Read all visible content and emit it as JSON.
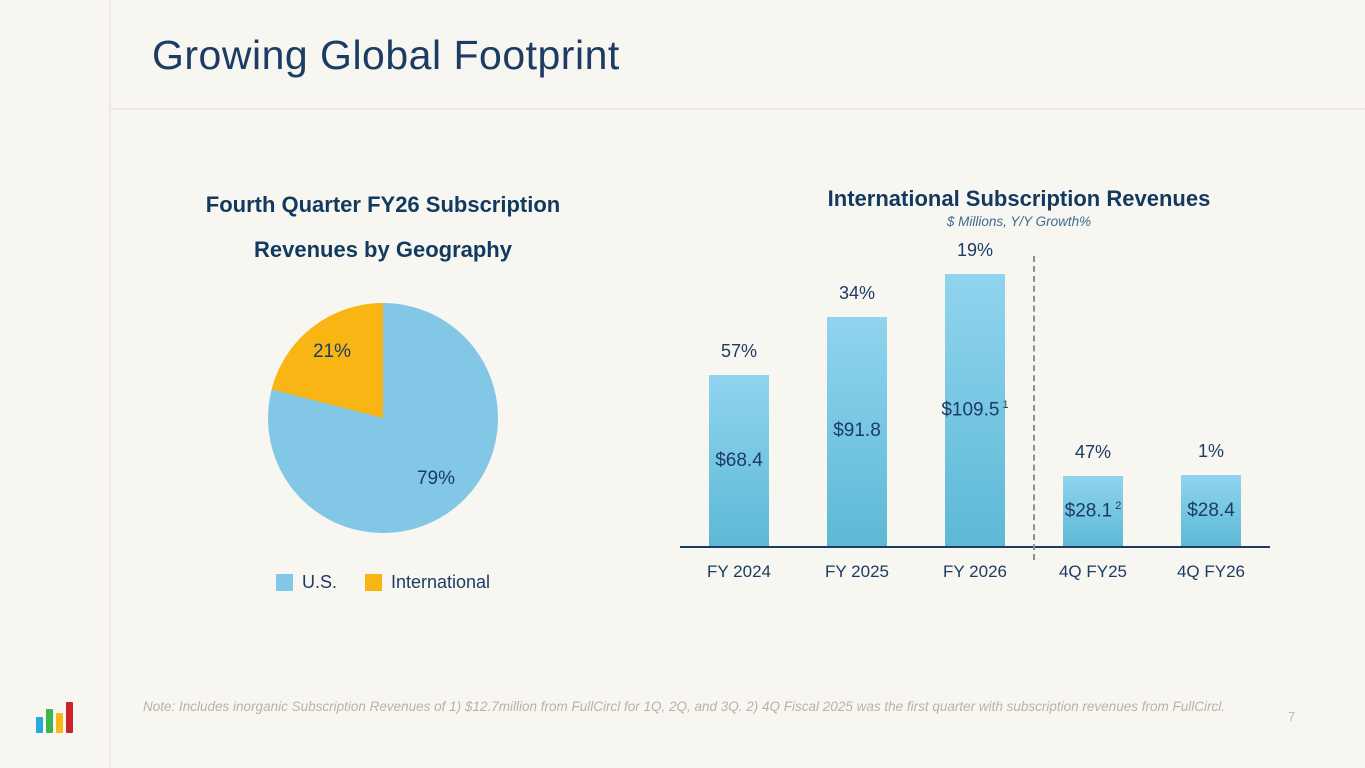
{
  "slide": {
    "title": "Growing Global Footprint",
    "page_number": "7",
    "note": "Note: Includes inorganic Subscription Revenues of 1) $12.7million from FullCircl for 1Q, 2Q, and 3Q. 2) 4Q Fiscal 2025 was the first quarter with subscription revenues from FullCircl.",
    "logo_bar_colors": [
      "#29a8e0",
      "#3cb54a",
      "#fdb714",
      "#cc2229"
    ]
  },
  "colors": {
    "background": "#f8f6f1",
    "navy_text": "#1c3c64",
    "rule_gray": "#edeae4",
    "pie_blue": "#82c8e6",
    "pie_yellow": "#f9b513",
    "bar_gradient_top": "#90d4ee",
    "bar_gradient_bottom": "#5db9d6",
    "subtitle_blue": "#3d6b94",
    "note_gray": "#b7b3aa",
    "page_number_blue": "#a6bed1",
    "divider_dash_gray": "#8f8f8f"
  },
  "chart_data": [
    {
      "type": "pie",
      "title": "Fourth Quarter FY26 Subscription Revenues by Geography",
      "legend_position": "bottom",
      "slices": [
        {
          "label": "U.S.",
          "value": 79,
          "display": "79%",
          "color": "#82c8e6"
        },
        {
          "label": "International",
          "value": 21,
          "display": "21%",
          "color": "#f9b513"
        }
      ]
    },
    {
      "type": "bar",
      "title": "International Subscription Revenues",
      "subtitle": "$ Millions, Y/Y Growth%",
      "categories": [
        "FY 2024",
        "FY 2025",
        "FY 2026",
        "4Q FY25",
        "4Q FY26"
      ],
      "values": [
        68.4,
        91.8,
        109.5,
        28.1,
        28.4
      ],
      "value_labels": [
        "$68.4",
        "$91.8",
        "$109.5",
        "$28.1",
        "$28.4"
      ],
      "value_superscripts": [
        "",
        "",
        "1",
        "2",
        ""
      ],
      "growth_labels": [
        "57%",
        "34%",
        "19%",
        "47%",
        "1%"
      ],
      "divider_after_index": 2,
      "ylim": [
        0,
        123
      ],
      "grid": false,
      "unit": "$ Millions"
    }
  ]
}
